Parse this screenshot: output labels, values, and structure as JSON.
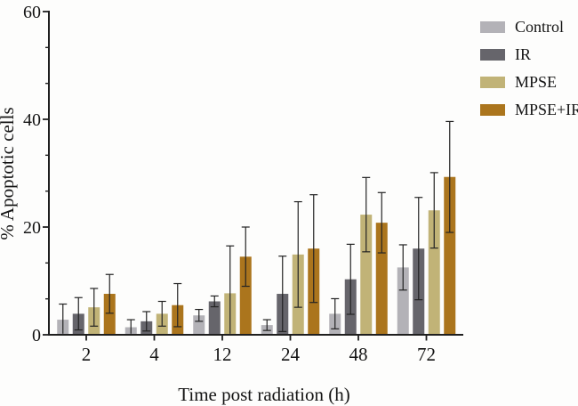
{
  "colors": {
    "background": "#fdfdfc",
    "axis": "#1f1f1f",
    "text": "#141414",
    "error_bar": "#232323"
  },
  "chart_data": {
    "type": "bar",
    "title": "",
    "xlabel": "Time post radiation (h)",
    "ylabel": "% Apoptotic cells",
    "ylim": [
      0,
      60
    ],
    "y_major_ticks": [
      0,
      20,
      40,
      60
    ],
    "y_minor_ticks_per_interval": 2,
    "grid": false,
    "error_bars": true,
    "legend_position": "top-right",
    "categories": [
      "2",
      "4",
      "12",
      "24",
      "48",
      "72"
    ],
    "series": [
      {
        "name": "Control",
        "color": "#b3b2b7",
        "values": [
          2.8,
          1.4,
          3.6,
          1.8,
          3.9,
          12.5
        ],
        "errors": [
          2.9,
          1.4,
          1.1,
          1.0,
          2.8,
          4.2
        ]
      },
      {
        "name": "IR",
        "color": "#66656b",
        "values": [
          3.9,
          2.5,
          6.2,
          7.6,
          10.3,
          16.0
        ],
        "errors": [
          3.0,
          1.8,
          1.0,
          7.0,
          6.5,
          9.5
        ]
      },
      {
        "name": "MPSE",
        "color": "#c1b377",
        "values": [
          5.1,
          3.9,
          7.7,
          14.9,
          22.3,
          23.1
        ],
        "errors": [
          3.5,
          2.3,
          8.8,
          9.8,
          6.9,
          7.0
        ]
      },
      {
        "name": "MPSE+IR",
        "color": "#ab751d",
        "values": [
          7.6,
          5.5,
          14.5,
          16.0,
          20.8,
          29.3
        ],
        "errors": [
          3.6,
          4.0,
          5.5,
          10.0,
          5.6,
          10.3
        ]
      }
    ]
  }
}
